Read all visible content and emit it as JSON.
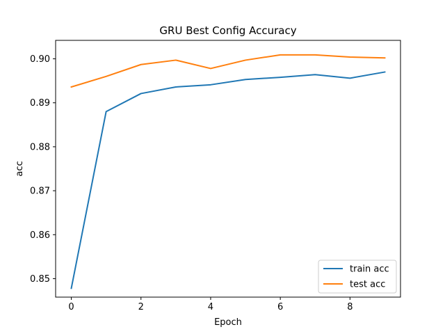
{
  "chart_data": {
    "type": "line",
    "title": "GRU Best Config Accuracy",
    "xlabel": "Epoch",
    "ylabel": "acc",
    "x": [
      0,
      1,
      2,
      3,
      4,
      5,
      6,
      7,
      8,
      9
    ],
    "xlim": [
      -0.45,
      9.45
    ],
    "ylim": [
      0.8458,
      0.9042
    ],
    "xticks": [
      0,
      2,
      4,
      6,
      8
    ],
    "yticks": [
      0.85,
      0.86,
      0.87,
      0.88,
      0.89,
      0.9
    ],
    "xtick_labels": [
      "0",
      "2",
      "4",
      "6",
      "8"
    ],
    "ytick_labels": [
      "0.85",
      "0.86",
      "0.87",
      "0.88",
      "0.89",
      "0.90"
    ],
    "grid": false,
    "legend_position": "lower-right",
    "series": [
      {
        "name": "train acc",
        "color": "#1f77b4",
        "values": [
          0.8478,
          0.888,
          0.8921,
          0.8936,
          0.8941,
          0.8953,
          0.8958,
          0.8964,
          0.8956,
          0.897
        ]
      },
      {
        "name": "test acc",
        "color": "#ff7f0e",
        "values": [
          0.8936,
          0.896,
          0.8987,
          0.8997,
          0.8978,
          0.8997,
          0.9009,
          0.9009,
          0.9004,
          0.9002
        ]
      }
    ]
  }
}
